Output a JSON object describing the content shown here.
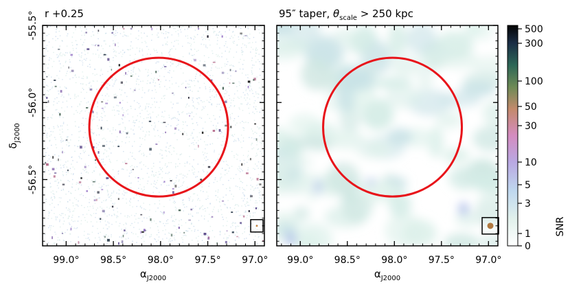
{
  "chart_data": [
    {
      "type": "heatmap",
      "title": "r +0.25",
      "xlabel": "α",
      "xlabel_sub": "J2000",
      "ylabel": "δ",
      "ylabel_sub": "J2000",
      "xlim": [
        99.25,
        96.9
      ],
      "ylim": [
        -56.93,
        -55.5
      ],
      "x_ticks": [
        99.0,
        98.5,
        98.0,
        97.5,
        97.0
      ],
      "x_tick_labels": [
        "99.0°",
        "98.5°",
        "98.0°",
        "97.5°",
        "97.0°"
      ],
      "y_ticks": [
        -55.5,
        -56.0,
        -56.5
      ],
      "y_tick_labels": [
        "-55.5°",
        "-56.0°",
        "-56.5°"
      ],
      "circle": {
        "center_ra": 98.02,
        "center_dec": -56.16,
        "radius_deg": 0.45,
        "color": "#e8141a"
      },
      "beam_box": {
        "ra": 96.98,
        "dec": -56.8,
        "marker_color": "#c47a30",
        "marker_size": "tiny"
      }
    },
    {
      "type": "heatmap",
      "title_prefix": "95″ taper, ",
      "title_theta": "θ",
      "title_theta_sub": "scale",
      "title_suffix": " > 250 kpc",
      "xlabel": "α",
      "xlabel_sub": "J2000",
      "xlim": [
        99.25,
        96.9
      ],
      "ylim": [
        -56.93,
        -55.5
      ],
      "x_ticks": [
        99.0,
        98.5,
        98.0,
        97.5,
        97.0
      ],
      "x_tick_labels": [
        "99.0°",
        "98.5°",
        "98.0°",
        "97.5°",
        "97.0°"
      ],
      "circle": {
        "center_ra": 98.02,
        "center_dec": -56.16,
        "radius_deg": 0.45,
        "color": "#e8141a"
      },
      "beam_box": {
        "ra": 96.98,
        "dec": -56.8,
        "marker_color": "#b07840",
        "marker_size": "large"
      }
    }
  ],
  "colorbar": {
    "label": "SNR",
    "scale": "log-like",
    "ticks": [
      0,
      1,
      3,
      5,
      10,
      30,
      50,
      100,
      300,
      500
    ],
    "tick_labels": [
      "0",
      "1",
      "3",
      "5",
      "10",
      "30",
      "50",
      "100",
      "300",
      "500"
    ],
    "colors": [
      "#ffffff",
      "#dcefe9",
      "#b9c9ea",
      "#c49bdb",
      "#d88bb5",
      "#b8875f",
      "#587d52",
      "#1f5c52",
      "#132235",
      "#050505"
    ]
  }
}
